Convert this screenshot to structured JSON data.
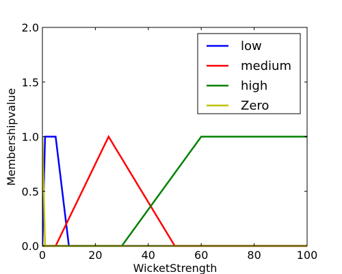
{
  "chart_data": {
    "type": "line",
    "title": "",
    "xlabel": "WicketStrength",
    "ylabel": "Membershipvalue",
    "xlim": [
      0,
      100
    ],
    "ylim": [
      0,
      2
    ],
    "x_ticks": [
      0,
      20,
      40,
      60,
      80,
      100
    ],
    "x_tick_labels": [
      "0",
      "20",
      "40",
      "60",
      "80",
      "100"
    ],
    "y_ticks": [
      0,
      0.5,
      1,
      1.5,
      2
    ],
    "y_tick_labels": [
      "0.0",
      "0.5",
      "1.0",
      "1.5",
      "2.0"
    ],
    "grid": false,
    "legend_position": "top-right",
    "series": [
      {
        "name": "low",
        "color": "#0000ff",
        "points": [
          [
            0,
            0
          ],
          [
            1,
            1
          ],
          [
            5,
            1
          ],
          [
            10,
            0
          ],
          [
            100,
            0
          ]
        ]
      },
      {
        "name": "medium",
        "color": "#ff0000",
        "points": [
          [
            0,
            0
          ],
          [
            5,
            0
          ],
          [
            25,
            1
          ],
          [
            50,
            0
          ],
          [
            100,
            0
          ]
        ]
      },
      {
        "name": "high",
        "color": "#008000",
        "points": [
          [
            0,
            0
          ],
          [
            30,
            0
          ],
          [
            60,
            1
          ],
          [
            100,
            1
          ]
        ]
      },
      {
        "name": "Zero",
        "color": "#bfbf00",
        "points": [
          [
            0,
            1
          ],
          [
            1,
            0
          ],
          [
            100,
            0
          ]
        ]
      }
    ]
  }
}
